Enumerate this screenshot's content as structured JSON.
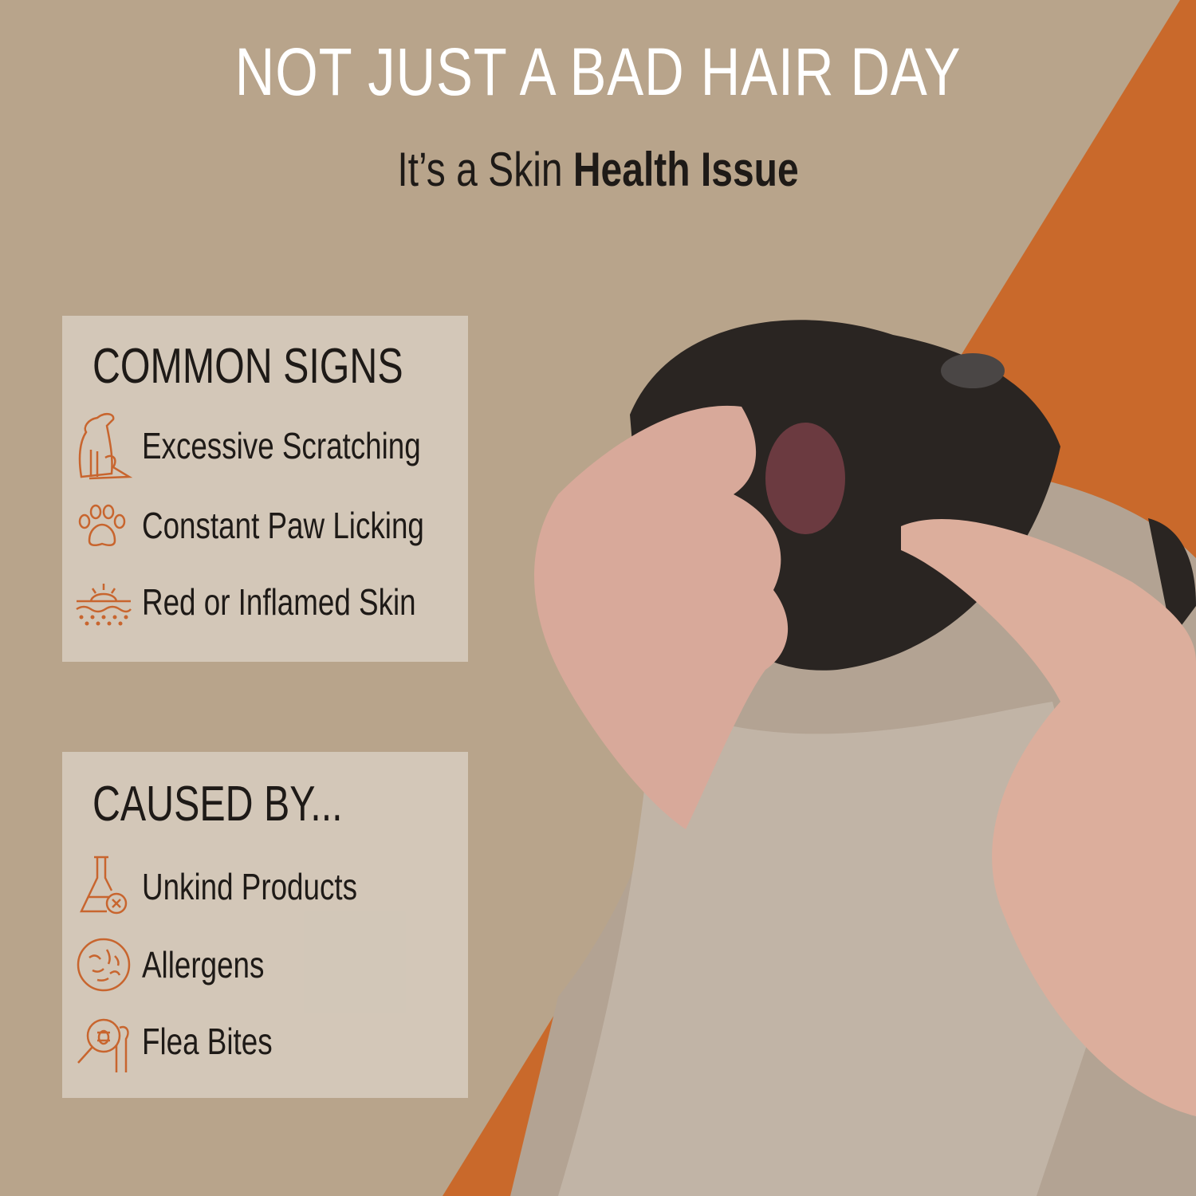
{
  "header": {
    "title": "NOT JUST A BAD HAIR DAY",
    "subtitle_prefix": "It’s a Skin ",
    "subtitle_bold": "Health Issue"
  },
  "common_signs": {
    "title": "COMMON SIGNS",
    "items": [
      {
        "icon": "scratching-dog-icon",
        "label": "Excessive Scratching"
      },
      {
        "icon": "paw-icon",
        "label": "Constant Paw Licking"
      },
      {
        "icon": "inflamed-skin-icon",
        "label": "Red or Inflamed Skin"
      }
    ]
  },
  "caused_by": {
    "title": "CAUSED BY...",
    "items": [
      {
        "icon": "flask-x-icon",
        "label": "Unkind Products"
      },
      {
        "icon": "allergen-microbes-icon",
        "label": "Allergens"
      },
      {
        "icon": "flea-magnifier-icon",
        "label": "Flea Bites"
      }
    ]
  },
  "colors": {
    "background": "#b8a48b",
    "accent": "#c9692b",
    "icon": "#c8652e",
    "text": "#1e1a17"
  }
}
